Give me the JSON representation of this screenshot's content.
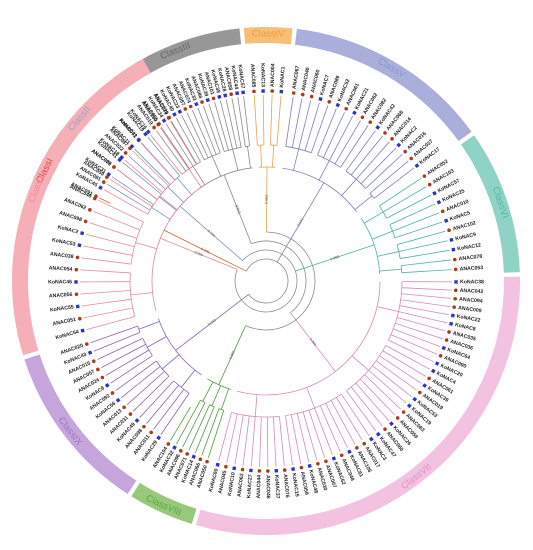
{
  "figure": {
    "classes": [
      {
        "label": "ClassI",
        "color": "#ee6b53",
        "text_color": "#e34b3a",
        "start_deg": -29,
        "end_deg": -23,
        "branch_color": "#d06030",
        "leaves": [
          "ANAC091"
        ],
        "support": "0.193"
      },
      {
        "label": "ClassII",
        "color": "#aec5e2",
        "text_color": "#8aa6cf",
        "start_deg": -51,
        "end_deg": -31,
        "branch_color": "#7a93c0",
        "leaves": [
          "ANAC081",
          "KoNAC31",
          "ANAC002",
          "KoNAC41",
          "ANAC032",
          "KoNAC11",
          "ANAC072",
          "KoNAC19"
        ],
        "support": "0.724"
      },
      {
        "label": "ClassIII",
        "color": "#979797",
        "text_color": "#666666",
        "start_deg": -51,
        "end_deg": -5,
        "branch_color": "#8a8a8a",
        "leaves": [
          "ANAC019",
          "ANAC055",
          "KoNAC34",
          "ANAC029",
          "KoNAC40",
          "KoNAC23",
          "ANAC087",
          "ANAC074",
          "KoNAC33",
          "ANAC086",
          "KoNAC39",
          "ANAC101",
          "KoNAC38",
          "KoNAC28",
          "ANAC058",
          "KoNAC44",
          "KoNAC57"
        ],
        "support": "0.813"
      },
      {
        "label": "ClassIV",
        "color": "#f6bf73",
        "text_color": "#ef9a3c",
        "start_deg": -5,
        "end_deg": 6,
        "branch_color": "#e3a34a",
        "leaves": [
          "ANAC085",
          "KoNAC13",
          "ANAC004",
          "KoNAC1"
        ],
        "support": "0.983"
      },
      {
        "label": "ClassV",
        "color": "#a9aedb",
        "text_color": "#8f94cf",
        "start_deg": 6,
        "end_deg": 53,
        "branch_color": "#7b80b8",
        "leaves": [
          "ANAC067",
          "ANAC040",
          "ANAC060",
          "KoNAC7",
          "ANAC089",
          "KoNAC52",
          "ANAC061",
          "KoNAC21",
          "ANAC062",
          "ANAC082",
          "KoNAC42",
          "ANAC068",
          "ANAC014",
          "KoNAC2",
          "ANAC016",
          "ANAC037",
          "KoNAC17"
        ],
        "support": "0.941"
      },
      {
        "label": "ClassVI",
        "color": "#8fd3c6",
        "text_color": "#4fb7a7",
        "start_deg": 53,
        "end_deg": 87,
        "branch_color": "#4bb2a2",
        "leaves": [
          "ANAC052",
          "ANAC103",
          "KoNAC57",
          "KoNAC25",
          "ANAC010",
          "KoNAC5",
          "ANAC102",
          "KoNAC9",
          "KoNAC12",
          "ANAC078",
          "ANAC053"
        ],
        "support": "0.988"
      },
      {
        "label": "ClassVII",
        "color": "#f3c2e0",
        "text_color": "#e48fc4",
        "start_deg": 87,
        "end_deg": 195,
        "branch_color": "#d58ab7",
        "leaves": [
          "KoNAC38",
          "ANAC042",
          "ANAC094",
          "ANAC009",
          "KoNAC22",
          "KoNAC8",
          "ANAC035",
          "ANAC036",
          "KoNAC64",
          "ANAC090",
          "KoNAC20",
          "KoNAC4",
          "ANAC061",
          "KoNAC39",
          "ANAC019",
          "KoNAC53",
          "KoNAC19",
          "ANAC083",
          "ANAC059",
          "KoNAC26",
          "ANAC060",
          "KoNAC47",
          "KoNAC3",
          "ANAC017",
          "ANAC106",
          "KoNAC61",
          "ANAC048",
          "KoNAC62",
          "ANAC007",
          "ANAC030",
          "KoNAC48",
          "ANAC058",
          "KoNAC15",
          "ANAC076",
          "KoNAC37",
          "ANAC046",
          "ANAC044",
          "KoNAC27",
          "ANAC063",
          "KoNAC10",
          "ANAC045",
          "KoNAC60"
        ],
        "support": "0.966"
      },
      {
        "label": "ClassVIII",
        "color": "#96c97a",
        "text_color": "#5aa646",
        "start_deg": 195,
        "end_deg": 211,
        "branch_color": "#4a9e3a",
        "leaves": [
          "ANAC050",
          "ANAC066",
          "KoNAC14",
          "ANAC071",
          "ANAC096",
          "KoNAC32",
          "ANAC104"
        ],
        "support": "0.865"
      },
      {
        "label": "ClassIX",
        "color": "#c6a5dc",
        "text_color": "#9d73c4",
        "start_deg": 211,
        "end_deg": 251,
        "branch_color": "#8a63b3",
        "leaves": [
          "KoNAC29",
          "ANAC011",
          "ANAC098",
          "KoNAC49",
          "ANAC031",
          "ANAC013",
          "KoNAC56",
          "ANAC092",
          "KoNAC6",
          "ANAC024",
          "ANAC057",
          "ANAC015",
          "KoNAC43",
          "ANAC020"
        ],
        "support": "0.911"
      },
      {
        "label": "ClassX",
        "color": "#f6aeb7",
        "text_color": "#ee8c99",
        "start_deg": 251,
        "end_deg": 331,
        "branch_color": "#e38b93",
        "leaves": [
          "KoNAC54",
          "ANAC051",
          "KoNAC55",
          "ANAC056",
          "KoNAC46",
          "ANAC054",
          "ANAC038",
          "KoNAC53",
          "KoNAC2",
          "ANAC098",
          "ANAC062",
          "ANAC046",
          "KoNAC45",
          "ANAC059",
          "ANAC070",
          "KoNAC18",
          "ANAC087",
          "KoNAC41",
          "KoNAC16",
          "ANAC100",
          "ANAC079"
        ],
        "support": "0.956"
      }
    ],
    "colors": {
      "arabidopsis_marker": "#a93a1a",
      "kandelia_marker": "#2a35c8",
      "root_branch": "#8d8d8d"
    }
  }
}
